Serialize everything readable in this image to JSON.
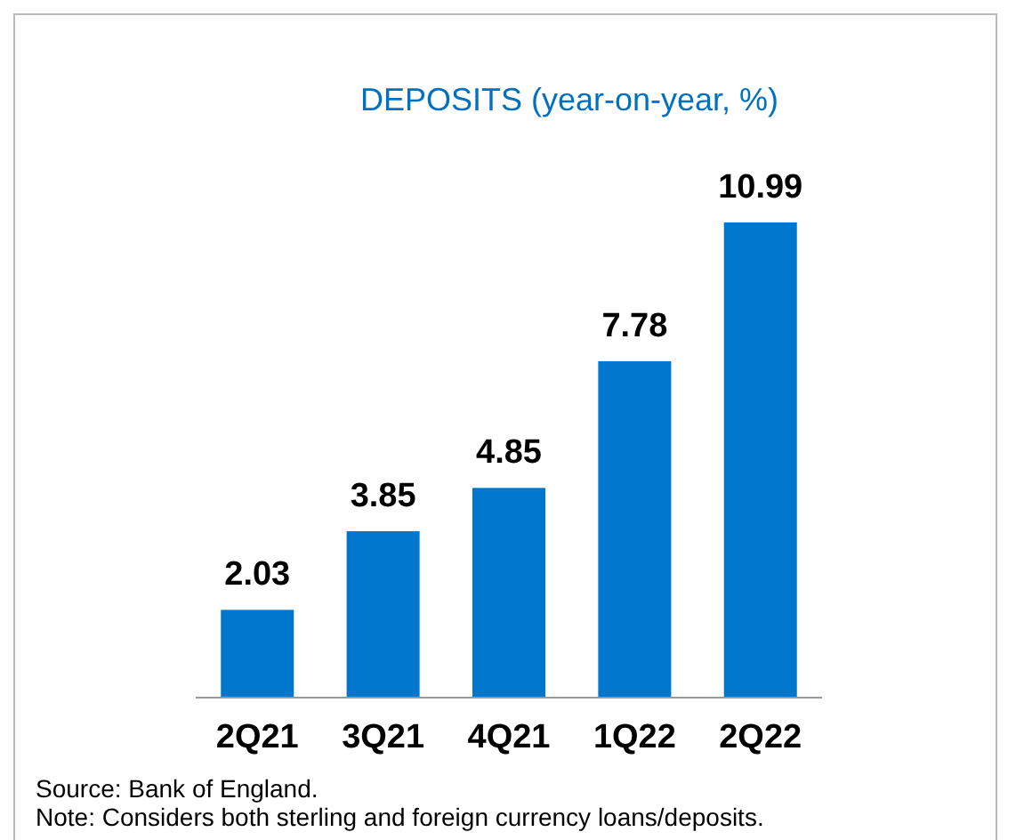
{
  "chart_data": {
    "type": "bar",
    "title": "DEPOSITS (year-on-year, %)",
    "categories": [
      "2Q21",
      "3Q21",
      "4Q21",
      "1Q22",
      "2Q22"
    ],
    "values": [
      2.03,
      3.85,
      4.85,
      7.78,
      10.99
    ],
    "color": "#0077cc",
    "data_labels": true,
    "annotations": [
      "Source: Bank of England.",
      "Note: Considers both sterling and foreign currency loans/deposits."
    ]
  }
}
